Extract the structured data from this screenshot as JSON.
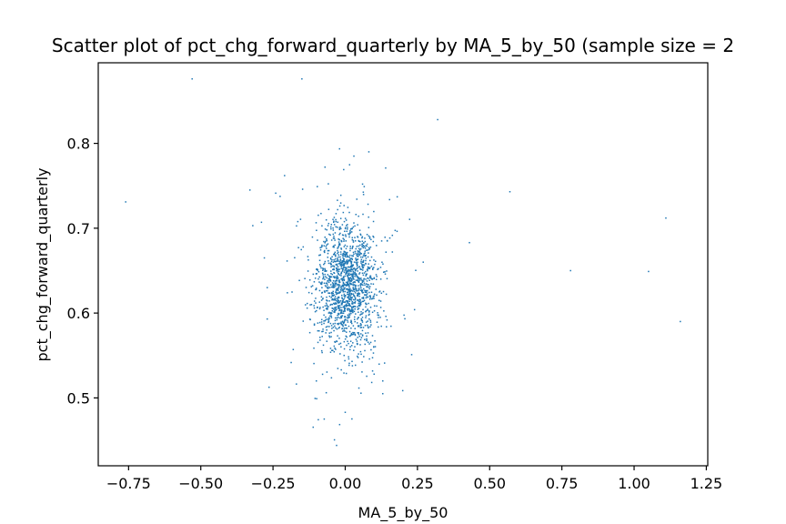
{
  "chart_data": {
    "type": "scatter",
    "title": "Scatter plot of pct_chg_forward_quarterly by MA_5_by_50 (sample size = 2",
    "xlabel": "MA_5_by_50",
    "ylabel": "pct_chg_forward_quarterly",
    "xlim": [
      -0.855,
      1.255
    ],
    "ylim": [
      0.42,
      0.895
    ],
    "xticks": [
      -0.75,
      -0.5,
      -0.25,
      0.0,
      0.25,
      0.5,
      0.75,
      1.0,
      1.25
    ],
    "xtick_labels": [
      "−0.75",
      "−0.50",
      "−0.25",
      "0.00",
      "0.25",
      "0.50",
      "0.75",
      "1.00",
      "1.25"
    ],
    "yticks": [
      0.5,
      0.6,
      0.7,
      0.8
    ],
    "ytick_labels": [
      "0.5",
      "0.6",
      "0.7",
      "0.8"
    ],
    "grid": false,
    "marker_color": "#1f77b4",
    "cluster": {
      "center_x": 0.005,
      "center_y": 0.632,
      "sd_x": 0.05,
      "sd_y": 0.036,
      "count": 1600
    },
    "outliers": [
      [
        -0.53,
        0.876
      ],
      [
        -0.15,
        0.876
      ],
      [
        0.32,
        0.828
      ],
      [
        -0.76,
        0.731
      ],
      [
        0.57,
        0.743
      ],
      [
        1.11,
        0.712
      ],
      [
        0.43,
        0.683
      ],
      [
        0.78,
        0.65
      ],
      [
        1.05,
        0.649
      ],
      [
        1.16,
        0.59
      ],
      [
        0.27,
        0.66
      ],
      [
        0.24,
        0.604
      ],
      [
        0.23,
        0.551
      ],
      [
        0.18,
        0.737
      ],
      [
        0.14,
        0.771
      ],
      [
        0.03,
        0.785
      ],
      [
        -0.07,
        0.772
      ],
      [
        -0.21,
        0.762
      ],
      [
        -0.33,
        0.745
      ],
      [
        -0.32,
        0.703
      ],
      [
        -0.29,
        0.707
      ],
      [
        -0.28,
        0.665
      ],
      [
        -0.27,
        0.63
      ],
      [
        -0.27,
        0.593
      ],
      [
        -0.1,
        0.52
      ],
      [
        -0.03,
        0.444
      ],
      [
        0.13,
        0.505
      ],
      [
        0.13,
        0.52
      ],
      [
        0.1,
        0.528
      ],
      [
        0.06,
        0.752
      ],
      [
        -0.18,
        0.557
      ],
      [
        0.0,
        0.483
      ]
    ]
  }
}
